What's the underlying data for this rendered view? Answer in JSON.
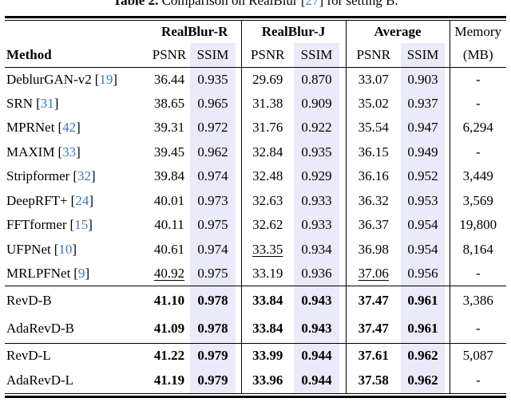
{
  "caption": {
    "label": "Table 2.",
    "before_cite": " Comparison on RealBlur ",
    "cite_num": "27",
    "after_cite": " for setting B."
  },
  "punct": {
    "open_bracket": "[",
    "close_bracket": "]"
  },
  "colors": {
    "ssim_highlight": "#eaeaf8",
    "citation_blue": "#3879c0",
    "text": "#000000"
  },
  "header": {
    "group_realblur_r": "RealBlur-R",
    "group_realblur_j": "RealBlur-J",
    "group_average": "Average",
    "group_memory": "Memory",
    "method": "Method",
    "psnr": "PSNR",
    "ssim": "SSIM",
    "memory_unit": "(MB)"
  },
  "sections": [
    {
      "rows": [
        {
          "method": "DeblurGAN-v2",
          "cite": "19",
          "psnr_r": "36.44",
          "ssim_r": "0.935",
          "psnr_j": "29.69",
          "ssim_j": "0.870",
          "psnr_avg": "33.07",
          "ssim_avg": "0.903",
          "memory": "-"
        },
        {
          "method": "SRN",
          "cite": "31",
          "psnr_r": "38.65",
          "ssim_r": "0.965",
          "psnr_j": "31.38",
          "ssim_j": "0.909",
          "psnr_avg": "35.02",
          "ssim_avg": "0.937",
          "memory": "-"
        },
        {
          "method": "MPRNet",
          "cite": "42",
          "psnr_r": "39.31",
          "ssim_r": "0.972",
          "psnr_j": "31.76",
          "ssim_j": "0.922",
          "psnr_avg": "35.54",
          "ssim_avg": "0.947",
          "memory": "6,294"
        },
        {
          "method": "MAXIM",
          "cite": "33",
          "psnr_r": "39.45",
          "ssim_r": "0.962",
          "psnr_j": "32.84",
          "ssim_j": "0.935",
          "psnr_avg": "36.15",
          "ssim_avg": "0.949",
          "memory": "-"
        },
        {
          "method": "Stripformer",
          "cite": "32",
          "psnr_r": "39.84",
          "ssim_r": "0.974",
          "psnr_j": "32.48",
          "ssim_j": "0.929",
          "psnr_avg": "36.16",
          "ssim_avg": "0.952",
          "memory": "3,449"
        },
        {
          "method": "DeepRFT+",
          "cite": "24",
          "psnr_r": "40.01",
          "ssim_r": "0.973",
          "psnr_j": "32.63",
          "ssim_j": "0.933",
          "psnr_avg": "36.32",
          "ssim_avg": "0.953",
          "memory": "3,569"
        },
        {
          "method": "FFTformer",
          "cite": "15",
          "psnr_r": "40.11",
          "ssim_r": "0.975",
          "psnr_j": "32.62",
          "ssim_j": "0.933",
          "psnr_avg": "36.37",
          "ssim_avg": "0.954",
          "memory": "19,800"
        },
        {
          "method": "UFPNet",
          "cite": "10",
          "psnr_r": "40.61",
          "ssim_r": "0.974",
          "psnr_j": "33.35",
          "ssim_j": "0.934",
          "psnr_avg": "36.98",
          "ssim_avg": "0.954",
          "memory": "8,164"
        },
        {
          "method": "MRLPFNet",
          "cite": "9",
          "psnr_r": "40.92",
          "ssim_r": "0.975",
          "psnr_j": "33.19",
          "ssim_j": "0.936",
          "psnr_avg": "37.06",
          "ssim_avg": "0.956",
          "memory": "-"
        }
      ]
    },
    {
      "rows": [
        {
          "method": "RevD-B",
          "psnr_r": "41.10",
          "ssim_r": "0.978",
          "psnr_j": "33.84",
          "ssim_j": "0.943",
          "psnr_avg": "37.47",
          "ssim_avg": "0.961",
          "memory": "3,386"
        },
        {
          "method": "AdaRevD-B",
          "psnr_r": "41.09",
          "ssim_r": "0.978",
          "psnr_j": "33.84",
          "ssim_j": "0.943",
          "psnr_avg": "37.47",
          "ssim_avg": "0.961",
          "memory": "-"
        }
      ]
    },
    {
      "rows": [
        {
          "method": "RevD-L",
          "psnr_r": "41.22",
          "ssim_r": "0.979",
          "psnr_j": "33.99",
          "ssim_j": "0.944",
          "psnr_avg": "37.61",
          "ssim_avg": "0.962",
          "memory": "5,087"
        },
        {
          "method": "AdaRevD-L",
          "psnr_r": "41.19",
          "ssim_r": "0.979",
          "psnr_j": "33.96",
          "ssim_j": "0.944",
          "psnr_avg": "37.58",
          "ssim_avg": "0.962",
          "memory": "-"
        }
      ]
    }
  ]
}
